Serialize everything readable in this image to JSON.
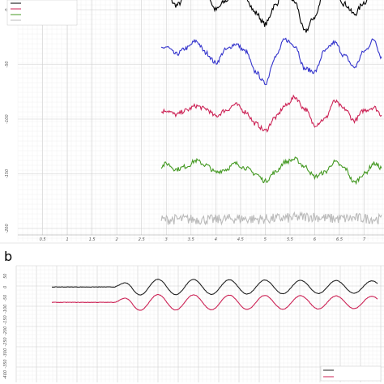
{
  "figure": {
    "panel_b_label": "b",
    "background": "#ffffff",
    "grid_major": "#cfcfcf",
    "grid_minor": "#ececec"
  },
  "chart_data": [
    {
      "type": "line",
      "title": "",
      "xlabel": "",
      "ylabel": "",
      "x_ticks": [
        "0.5",
        "1",
        "1.5",
        "2",
        "2.5",
        "3",
        "3.5",
        "4",
        "4.5",
        "5",
        "5.5",
        "6",
        "6.5",
        "7"
      ],
      "y_ticks": [
        "0",
        "-50",
        "-100",
        "-150",
        "-200"
      ],
      "xlim": [
        0,
        7.4
      ],
      "ylim": [
        -200,
        0
      ],
      "grid": true,
      "legend_position": "top-left",
      "series": [
        {
          "name": "",
          "color": "#000000",
          "offset": 0,
          "amp": 1.0,
          "noise": 0.18,
          "x": [
            2.9,
            3.0,
            3.2,
            3.4,
            3.6,
            3.8,
            4.0,
            4.2,
            4.4,
            4.6,
            4.8,
            5.0,
            5.2,
            5.4,
            5.6,
            5.8,
            6.0,
            6.2,
            6.4,
            6.6,
            6.8,
            7.0,
            7.2,
            7.35
          ],
          "y": [
            1.0,
            1.1,
            0.3,
            0.8,
            1.5,
            1.2,
            0.0,
            0.6,
            1.4,
            0.9,
            -0.2,
            -1.0,
            0.3,
            1.6,
            0.5,
            -1.5,
            -0.5,
            1.3,
            1.5,
            0.4,
            -0.3,
            0.5,
            1.5,
            0.9
          ]
        },
        {
          "name": "",
          "color": "#3333cc",
          "offset": -46,
          "amp": 1.0,
          "noise": 0.15,
          "x": [
            2.9,
            3.0,
            3.2,
            3.4,
            3.6,
            3.8,
            4.0,
            4.2,
            4.4,
            4.6,
            4.8,
            5.0,
            5.2,
            5.4,
            5.6,
            5.8,
            6.0,
            6.2,
            6.4,
            6.6,
            6.8,
            7.0,
            7.2,
            7.35
          ],
          "y": [
            0.8,
            0.9,
            0.4,
            0.8,
            1.3,
            0.5,
            -0.2,
            0.7,
            1.1,
            0.6,
            -0.8,
            -1.6,
            0.2,
            1.4,
            1.0,
            -0.6,
            -0.8,
            0.6,
            1.2,
            0.3,
            -0.5,
            0.6,
            1.4,
            0.2
          ]
        },
        {
          "name": "",
          "color": "#cc2255",
          "offset": -96,
          "amp": 1.0,
          "noise": 0.15,
          "x": [
            2.9,
            3.0,
            3.2,
            3.4,
            3.6,
            3.8,
            4.0,
            4.2,
            4.4,
            4.6,
            4.8,
            5.0,
            5.2,
            5.4,
            5.6,
            5.8,
            6.0,
            6.2,
            6.4,
            6.6,
            6.8,
            7.0,
            7.2,
            7.35
          ],
          "y": [
            0.2,
            0.3,
            0.0,
            0.3,
            0.6,
            0.4,
            -0.1,
            0.3,
            0.7,
            0.2,
            -0.6,
            -1.1,
            -0.2,
            0.6,
            1.2,
            0.4,
            -0.7,
            -0.3,
            0.9,
            0.4,
            -0.4,
            0.3,
            0.5,
            0.0
          ]
        },
        {
          "name": "",
          "color": "#449922",
          "offset": -146,
          "amp": 1.0,
          "noise": 0.15,
          "x": [
            2.9,
            3.0,
            3.2,
            3.4,
            3.6,
            3.8,
            4.0,
            4.2,
            4.4,
            4.6,
            4.8,
            5.0,
            5.2,
            5.4,
            5.6,
            5.8,
            6.0,
            6.2,
            6.4,
            6.6,
            6.8,
            7.0,
            7.2,
            7.35
          ],
          "y": [
            0.2,
            0.4,
            0.0,
            0.2,
            0.6,
            0.3,
            -0.2,
            0.0,
            0.4,
            0.1,
            -0.3,
            -0.8,
            -0.2,
            0.5,
            0.7,
            0.2,
            -0.5,
            -0.2,
            0.5,
            0.1,
            -0.9,
            -0.3,
            0.4,
            0.1
          ]
        },
        {
          "name": "",
          "color": "#bbbbbb",
          "offset": -192,
          "amp": 0.35,
          "noise": 0.35,
          "x": [
            2.9,
            3.4,
            3.9,
            4.4,
            4.9,
            5.4,
            5.9,
            6.4,
            6.9,
            7.35
          ],
          "y": [
            0.0,
            0.1,
            0.0,
            0.2,
            0.1,
            0.3,
            0.6,
            0.2,
            0.3,
            0.1
          ]
        }
      ]
    },
    {
      "type": "line",
      "title": "",
      "xlabel": "",
      "ylabel": "",
      "y_ticks": [
        "50",
        "0",
        "-50",
        "-100",
        "-150",
        "-200",
        "-250",
        "-300",
        "-350",
        "-400"
      ],
      "ylim": [
        -420,
        60
      ],
      "grid": true,
      "legend_position": "bottom-right",
      "series": [
        {
          "name": "",
          "color": "#222222",
          "offset": 0,
          "amp": 1.0,
          "noise": 0.05,
          "signal": "damped sine starting at x=0.38, ~8 cycles"
        },
        {
          "name": "",
          "color": "#cc2255",
          "offset": -70,
          "amp": 1.0,
          "noise": 0.05,
          "signal": "damped sine starting at x=0.38, ~8 cycles"
        }
      ]
    }
  ]
}
